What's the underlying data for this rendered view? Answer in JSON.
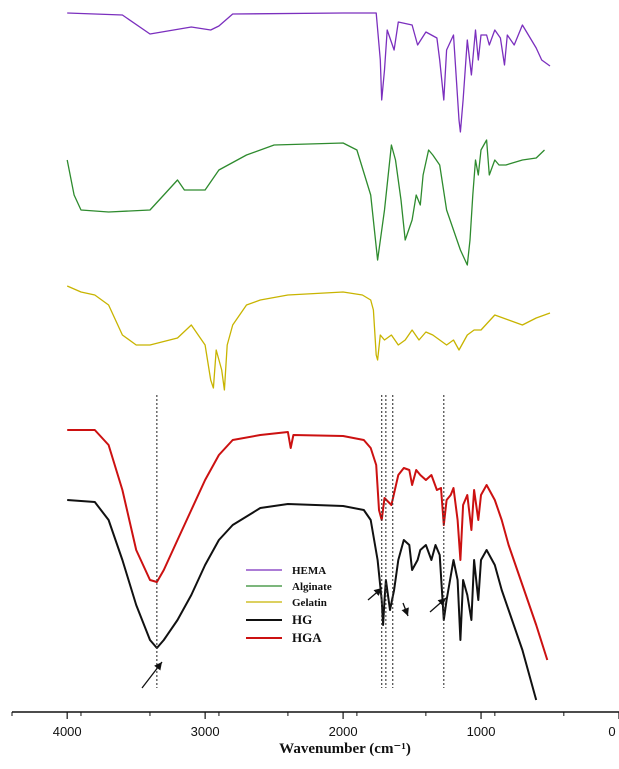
{
  "chart_data": {
    "type": "line",
    "title": "",
    "xlabel": "Wavenumber (cm⁻¹)",
    "ylabel": "",
    "xlim": [
      4400,
      0
    ],
    "x_ticks": [
      4000,
      3000,
      2000,
      1000,
      0
    ],
    "x_tick_labels": [
      "4000",
      "3000",
      "2000",
      "1000",
      "0"
    ],
    "grid": false,
    "legend_position": "center-right",
    "series": [
      {
        "name": "HEMA",
        "color": "#7B2FBE",
        "values": [
          [
            4000,
            13
          ],
          [
            3600,
            15
          ],
          [
            3400,
            34
          ],
          [
            3100,
            27
          ],
          [
            2960,
            30
          ],
          [
            2900,
            26
          ],
          [
            2800,
            14
          ],
          [
            2000,
            13
          ],
          [
            1760,
            13
          ],
          [
            1730,
            60
          ],
          [
            1720,
            100
          ],
          [
            1700,
            70
          ],
          [
            1680,
            30
          ],
          [
            1630,
            50
          ],
          [
            1600,
            22
          ],
          [
            1500,
            25
          ],
          [
            1460,
            45
          ],
          [
            1400,
            32
          ],
          [
            1320,
            38
          ],
          [
            1300,
            60
          ],
          [
            1270,
            100
          ],
          [
            1250,
            50
          ],
          [
            1200,
            35
          ],
          [
            1160,
            120
          ],
          [
            1150,
            132
          ],
          [
            1130,
            100
          ],
          [
            1100,
            40
          ],
          [
            1070,
            75
          ],
          [
            1040,
            30
          ],
          [
            1020,
            60
          ],
          [
            1000,
            35
          ],
          [
            960,
            35
          ],
          [
            940,
            45
          ],
          [
            900,
            30
          ],
          [
            860,
            38
          ],
          [
            830,
            65
          ],
          [
            810,
            35
          ],
          [
            760,
            45
          ],
          [
            700,
            25
          ],
          [
            600,
            48
          ],
          [
            560,
            60
          ],
          [
            500,
            66
          ]
        ]
      },
      {
        "name": "Alginate",
        "color": "#2E8B2E",
        "values": [
          [
            4000,
            160
          ],
          [
            3950,
            195
          ],
          [
            3900,
            210
          ],
          [
            3700,
            212
          ],
          [
            3400,
            210
          ],
          [
            3300,
            195
          ],
          [
            3200,
            180
          ],
          [
            3150,
            190
          ],
          [
            3000,
            190
          ],
          [
            2900,
            170
          ],
          [
            2700,
            155
          ],
          [
            2500,
            145
          ],
          [
            2000,
            143
          ],
          [
            1900,
            150
          ],
          [
            1800,
            195
          ],
          [
            1750,
            260
          ],
          [
            1700,
            210
          ],
          [
            1650,
            145
          ],
          [
            1620,
            160
          ],
          [
            1580,
            200
          ],
          [
            1550,
            240
          ],
          [
            1500,
            220
          ],
          [
            1470,
            195
          ],
          [
            1440,
            205
          ],
          [
            1420,
            175
          ],
          [
            1380,
            150
          ],
          [
            1350,
            155
          ],
          [
            1300,
            165
          ],
          [
            1250,
            210
          ],
          [
            1200,
            230
          ],
          [
            1150,
            250
          ],
          [
            1100,
            265
          ],
          [
            1080,
            240
          ],
          [
            1060,
            195
          ],
          [
            1040,
            160
          ],
          [
            1020,
            175
          ],
          [
            1000,
            150
          ],
          [
            960,
            140
          ],
          [
            940,
            175
          ],
          [
            900,
            160
          ],
          [
            870,
            165
          ],
          [
            820,
            165
          ],
          [
            700,
            160
          ],
          [
            600,
            158
          ],
          [
            540,
            150
          ]
        ]
      },
      {
        "name": "Gelatin",
        "color": "#C8B400",
        "values": [
          [
            4000,
            286
          ],
          [
            3900,
            292
          ],
          [
            3800,
            295
          ],
          [
            3700,
            305
          ],
          [
            3600,
            335
          ],
          [
            3500,
            345
          ],
          [
            3400,
            345
          ],
          [
            3200,
            338
          ],
          [
            3100,
            325
          ],
          [
            3000,
            345
          ],
          [
            2960,
            380
          ],
          [
            2940,
            388
          ],
          [
            2920,
            350
          ],
          [
            2880,
            370
          ],
          [
            2860,
            390
          ],
          [
            2840,
            345
          ],
          [
            2800,
            325
          ],
          [
            2700,
            305
          ],
          [
            2600,
            300
          ],
          [
            2400,
            295
          ],
          [
            2000,
            292
          ],
          [
            1860,
            295
          ],
          [
            1800,
            300
          ],
          [
            1780,
            310
          ],
          [
            1760,
            355
          ],
          [
            1750,
            360
          ],
          [
            1730,
            335
          ],
          [
            1700,
            340
          ],
          [
            1650,
            335
          ],
          [
            1600,
            345
          ],
          [
            1550,
            340
          ],
          [
            1500,
            330
          ],
          [
            1450,
            340
          ],
          [
            1400,
            332
          ],
          [
            1350,
            335
          ],
          [
            1300,
            340
          ],
          [
            1250,
            345
          ],
          [
            1200,
            340
          ],
          [
            1160,
            350
          ],
          [
            1100,
            335
          ],
          [
            1050,
            330
          ],
          [
            1000,
            330
          ],
          [
            900,
            315
          ],
          [
            800,
            320
          ],
          [
            700,
            325
          ],
          [
            600,
            318
          ],
          [
            500,
            313
          ]
        ]
      },
      {
        "name": "HG",
        "color": "#111111",
        "values": [
          [
            4000,
            500
          ],
          [
            3800,
            502
          ],
          [
            3700,
            520
          ],
          [
            3600,
            560
          ],
          [
            3500,
            605
          ],
          [
            3400,
            640
          ],
          [
            3350,
            648
          ],
          [
            3300,
            640
          ],
          [
            3200,
            620
          ],
          [
            3100,
            595
          ],
          [
            3000,
            565
          ],
          [
            2900,
            540
          ],
          [
            2800,
            525
          ],
          [
            2600,
            508
          ],
          [
            2400,
            504
          ],
          [
            2000,
            506
          ],
          [
            1850,
            510
          ],
          [
            1800,
            520
          ],
          [
            1750,
            560
          ],
          [
            1720,
            600
          ],
          [
            1710,
            625
          ],
          [
            1700,
            600
          ],
          [
            1690,
            580
          ],
          [
            1660,
            610
          ],
          [
            1630,
            590
          ],
          [
            1600,
            560
          ],
          [
            1560,
            540
          ],
          [
            1520,
            545
          ],
          [
            1500,
            570
          ],
          [
            1460,
            560
          ],
          [
            1440,
            550
          ],
          [
            1400,
            545
          ],
          [
            1360,
            560
          ],
          [
            1330,
            545
          ],
          [
            1300,
            555
          ],
          [
            1270,
            620
          ],
          [
            1250,
            600
          ],
          [
            1200,
            560
          ],
          [
            1170,
            580
          ],
          [
            1150,
            640
          ],
          [
            1130,
            580
          ],
          [
            1100,
            595
          ],
          [
            1070,
            620
          ],
          [
            1050,
            560
          ],
          [
            1020,
            600
          ],
          [
            1000,
            560
          ],
          [
            960,
            550
          ],
          [
            900,
            565
          ],
          [
            850,
            590
          ],
          [
            800,
            610
          ],
          [
            700,
            650
          ],
          [
            600,
            700
          ]
        ]
      },
      {
        "name": "HGA",
        "color": "#CC1111",
        "values": [
          [
            4000,
            430
          ],
          [
            3800,
            430
          ],
          [
            3700,
            445
          ],
          [
            3600,
            490
          ],
          [
            3500,
            550
          ],
          [
            3400,
            580
          ],
          [
            3350,
            582
          ],
          [
            3300,
            570
          ],
          [
            3200,
            540
          ],
          [
            3100,
            510
          ],
          [
            3000,
            480
          ],
          [
            2900,
            455
          ],
          [
            2800,
            440
          ],
          [
            2600,
            435
          ],
          [
            2400,
            432
          ],
          [
            2380,
            448
          ],
          [
            2360,
            435
          ],
          [
            2000,
            436
          ],
          [
            1850,
            440
          ],
          [
            1800,
            448
          ],
          [
            1760,
            465
          ],
          [
            1740,
            510
          ],
          [
            1720,
            520
          ],
          [
            1700,
            498
          ],
          [
            1650,
            505
          ],
          [
            1600,
            475
          ],
          [
            1560,
            468
          ],
          [
            1520,
            470
          ],
          [
            1500,
            485
          ],
          [
            1470,
            470
          ],
          [
            1440,
            475
          ],
          [
            1400,
            480
          ],
          [
            1360,
            475
          ],
          [
            1320,
            490
          ],
          [
            1290,
            488
          ],
          [
            1270,
            525
          ],
          [
            1250,
            500
          ],
          [
            1220,
            495
          ],
          [
            1200,
            488
          ],
          [
            1170,
            520
          ],
          [
            1150,
            560
          ],
          [
            1130,
            505
          ],
          [
            1100,
            495
          ],
          [
            1070,
            530
          ],
          [
            1050,
            490
          ],
          [
            1020,
            520
          ],
          [
            1000,
            495
          ],
          [
            960,
            485
          ],
          [
            900,
            500
          ],
          [
            850,
            520
          ],
          [
            800,
            545
          ],
          [
            700,
            585
          ],
          [
            600,
            625
          ],
          [
            520,
            660
          ]
        ]
      }
    ],
    "reference_lines": [
      3350,
      1720,
      1690,
      1640,
      1270
    ],
    "annotations": [
      {
        "type": "arrow",
        "target": "HG",
        "near": 3350
      },
      {
        "type": "arrow",
        "target": "HG",
        "near": 1720
      },
      {
        "type": "arrow",
        "target": "HG",
        "near": 1640
      },
      {
        "type": "arrow",
        "target": "HG",
        "near": 1270
      }
    ]
  }
}
